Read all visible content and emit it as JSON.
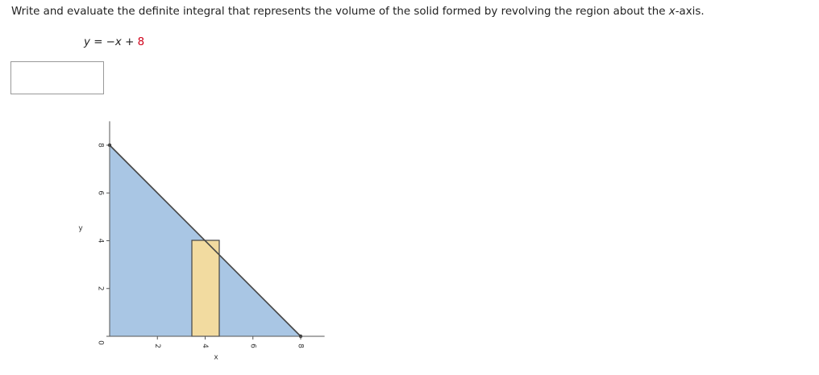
{
  "question": {
    "text": "Write and evaluate the definite integral that represents the volume of the solid formed by revolving the region about the ",
    "axis_var": "x",
    "axis_suffix": "-axis."
  },
  "equation": {
    "lhs": "y",
    "equals": "= −",
    "var": "x",
    "op": "+",
    "constant": "8"
  },
  "graph": {
    "x_label": "x",
    "y_label": "y",
    "xlim": [
      0,
      9
    ],
    "ylim": [
      0,
      9
    ],
    "xticks": [
      2,
      4,
      6,
      8
    ],
    "yticks": [
      0,
      2,
      4,
      6,
      8
    ]
  }
}
